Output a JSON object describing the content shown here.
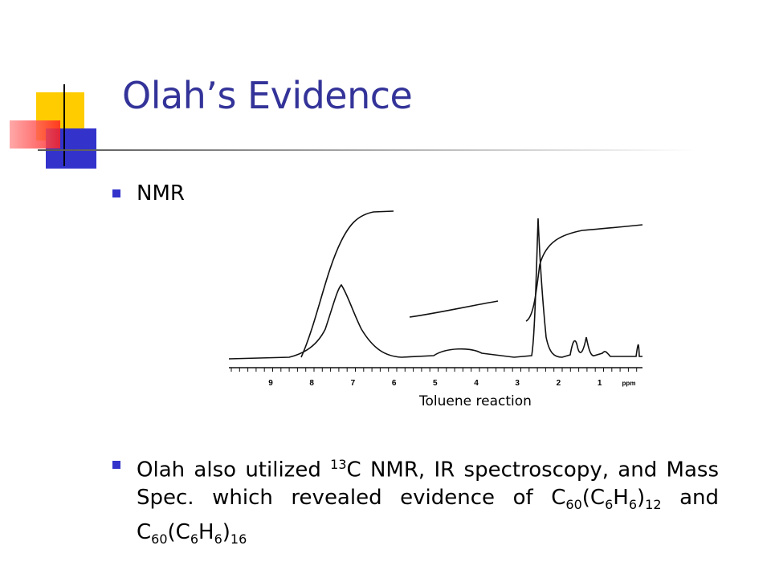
{
  "title": "Olah’s Evidence",
  "bullets": [
    {
      "parts": [
        "NMR"
      ]
    },
    {
      "parts": [
        "Olah also utilized ",
        {
          "sup": "13"
        },
        "C NMR, IR spectroscopy, and Mass Spec. which revealed evidence of C",
        {
          "sub": "60"
        },
        "(C",
        {
          "sub": "6"
        },
        "H",
        {
          "sub": "6"
        },
        ")",
        {
          "sub": "12"
        },
        " and C",
        {
          "sub": "60"
        },
        "(C",
        {
          "sub": "6"
        },
        "H",
        {
          "sub": "6"
        },
        ")",
        {
          "sub": "16"
        }
      ]
    }
  ],
  "figure": {
    "axis_labels": [
      "9",
      "8",
      "7",
      "6",
      "5",
      "4",
      "3",
      "2",
      "1",
      "ppm"
    ],
    "caption": "Toluene reaction"
  }
}
